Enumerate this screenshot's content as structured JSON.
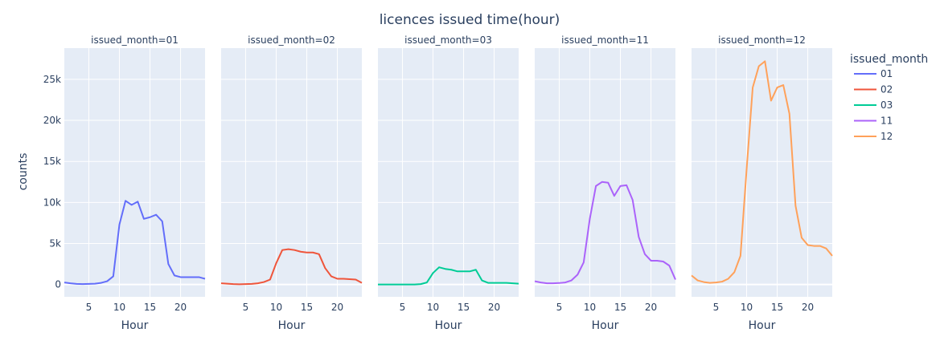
{
  "chart_data": {
    "type": "line",
    "title": "licences issued time(hour)",
    "xlabel": "Hour",
    "ylabel": "counts",
    "legend_title": "issued_month",
    "legend_position": "right",
    "grid": true,
    "xlim": [
      1,
      24
    ],
    "ylim": [
      -1500,
      28800
    ],
    "x_ticks": [
      5,
      10,
      15,
      20
    ],
    "x_tick_labels": [
      "5",
      "10",
      "15",
      "20"
    ],
    "y_ticks": [
      0,
      5000,
      10000,
      15000,
      20000,
      25000
    ],
    "y_tick_labels": [
      "0",
      "5k",
      "10k",
      "15k",
      "20k",
      "25k"
    ],
    "x": [
      1,
      2,
      3,
      4,
      5,
      6,
      7,
      8,
      9,
      10,
      11,
      12,
      13,
      14,
      15,
      16,
      17,
      18,
      19,
      20,
      21,
      22,
      23,
      24
    ],
    "series": [
      {
        "name": "01",
        "facet_label": "issued_month=01",
        "color": "#636efa",
        "values": [
          250,
          150,
          80,
          50,
          80,
          100,
          200,
          400,
          1000,
          7300,
          10200,
          9700,
          10100,
          8000,
          8200,
          8500,
          7700,
          2500,
          1100,
          900,
          900,
          900,
          900,
          700
        ]
      },
      {
        "name": "02",
        "facet_label": "issued_month=02",
        "color": "#EF553B",
        "values": [
          150,
          100,
          50,
          30,
          50,
          80,
          150,
          300,
          600,
          2600,
          4200,
          4300,
          4200,
          4000,
          3900,
          3900,
          3700,
          2000,
          1000,
          700,
          700,
          650,
          600,
          200
        ]
      },
      {
        "name": "03",
        "facet_label": "issued_month=03",
        "color": "#00cc96",
        "values": [
          0,
          0,
          0,
          0,
          0,
          0,
          0,
          50,
          250,
          1400,
          2100,
          1900,
          1800,
          1600,
          1600,
          1600,
          1800,
          500,
          200,
          200,
          200,
          200,
          150,
          100
        ]
      },
      {
        "name": "11",
        "facet_label": "issued_month=11",
        "color": "#ab63fa",
        "values": [
          400,
          250,
          150,
          150,
          180,
          250,
          500,
          1200,
          2700,
          8000,
          12000,
          12500,
          12400,
          10800,
          12000,
          12100,
          10300,
          5800,
          3700,
          2900,
          2900,
          2800,
          2300,
          600
        ]
      },
      {
        "name": "12",
        "facet_label": "issued_month=12",
        "color": "#FFA15A",
        "values": [
          1100,
          500,
          300,
          200,
          250,
          350,
          700,
          1500,
          3500,
          14000,
          24000,
          26600,
          27200,
          22400,
          24000,
          24300,
          20800,
          9600,
          5700,
          4800,
          4700,
          4700,
          4400,
          3500
        ]
      }
    ]
  }
}
